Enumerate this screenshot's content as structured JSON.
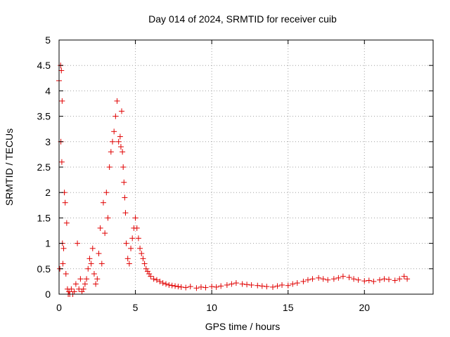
{
  "chart_data": {
    "type": "scatter",
    "title": "Day 014 of 2024, SRMTID for receiver cuib",
    "xlabel": "GPS time / hours",
    "ylabel": "SRMTID / TECUs",
    "xlim": [
      0,
      24.5
    ],
    "ylim": [
      0,
      5
    ],
    "xticks": [
      0,
      5,
      10,
      15,
      20
    ],
    "xtick_labels": [
      "0",
      "5",
      "10",
      "15",
      "20"
    ],
    "yticks": [
      0,
      0.5,
      1,
      1.5,
      2,
      2.5,
      3,
      3.5,
      4,
      4.5,
      5
    ],
    "ytick_labels": [
      "0",
      "0.5",
      "1",
      "1.5",
      "2",
      "2.5",
      "3",
      "3.5",
      "4",
      "4.5",
      "5"
    ],
    "grid": true,
    "marker": "+",
    "color": "#e00000",
    "series": [
      {
        "name": "SRMTID",
        "x": [
          0.0,
          0.05,
          0.1,
          0.12,
          0.15,
          0.18,
          0.2,
          0.22,
          0.25,
          0.3,
          0.35,
          0.4,
          0.45,
          0.5,
          0.55,
          0.6,
          0.65,
          0.7,
          0.8,
          0.9,
          1.0,
          1.1,
          1.2,
          1.3,
          1.4,
          1.5,
          1.6,
          1.7,
          1.8,
          1.9,
          2.0,
          2.1,
          2.2,
          2.3,
          2.4,
          2.5,
          2.6,
          2.7,
          2.8,
          2.9,
          3.0,
          3.1,
          3.2,
          3.3,
          3.4,
          3.5,
          3.6,
          3.7,
          3.8,
          3.9,
          4.0,
          4.05,
          4.1,
          4.15,
          4.2,
          4.25,
          4.3,
          4.35,
          4.4,
          4.5,
          4.6,
          4.7,
          4.8,
          4.9,
          5.0,
          5.1,
          5.2,
          5.3,
          5.4,
          5.5,
          5.6,
          5.7,
          5.8,
          5.9,
          6.0,
          6.2,
          6.4,
          6.6,
          6.8,
          7.0,
          7.2,
          7.4,
          7.6,
          7.8,
          8.0,
          8.3,
          8.6,
          9.0,
          9.3,
          9.6,
          10.0,
          10.3,
          10.6,
          11.0,
          11.3,
          11.6,
          12.0,
          12.3,
          12.6,
          13.0,
          13.3,
          13.6,
          14.0,
          14.3,
          14.6,
          15.0,
          15.3,
          15.6,
          16.0,
          16.3,
          16.6,
          17.0,
          17.3,
          17.6,
          18.0,
          18.3,
          18.6,
          19.0,
          19.3,
          19.6,
          20.0,
          20.3,
          20.6,
          21.0,
          21.3,
          21.6,
          22.0,
          22.3,
          22.6,
          22.8
        ],
        "y": [
          4.2,
          0.5,
          4.5,
          3.0,
          4.4,
          2.6,
          3.8,
          1.0,
          0.6,
          0.9,
          2.0,
          1.8,
          0.4,
          1.4,
          0.1,
          0.0,
          0.05,
          0.0,
          0.1,
          0.0,
          0.05,
          0.2,
          1.0,
          0.1,
          0.3,
          0.05,
          0.1,
          0.2,
          0.3,
          0.5,
          0.7,
          0.6,
          0.9,
          0.4,
          0.2,
          0.3,
          0.8,
          1.3,
          0.6,
          1.8,
          1.2,
          2.0,
          1.5,
          2.5,
          2.8,
          3.0,
          3.2,
          3.5,
          3.8,
          3.0,
          3.1,
          2.9,
          3.6,
          2.8,
          2.5,
          2.2,
          1.9,
          1.6,
          1.0,
          0.7,
          0.6,
          0.9,
          1.1,
          1.3,
          1.5,
          1.3,
          1.1,
          0.9,
          0.8,
          0.7,
          0.6,
          0.5,
          0.45,
          0.4,
          0.35,
          0.3,
          0.28,
          0.25,
          0.22,
          0.2,
          0.18,
          0.17,
          0.16,
          0.15,
          0.14,
          0.13,
          0.15,
          0.12,
          0.14,
          0.13,
          0.15,
          0.14,
          0.16,
          0.18,
          0.2,
          0.22,
          0.2,
          0.19,
          0.18,
          0.17,
          0.16,
          0.15,
          0.14,
          0.16,
          0.18,
          0.17,
          0.2,
          0.22,
          0.25,
          0.28,
          0.3,
          0.32,
          0.3,
          0.28,
          0.3,
          0.32,
          0.35,
          0.33,
          0.3,
          0.28,
          0.26,
          0.27,
          0.25,
          0.28,
          0.3,
          0.29,
          0.27,
          0.3,
          0.35,
          0.3
        ]
      }
    ]
  }
}
